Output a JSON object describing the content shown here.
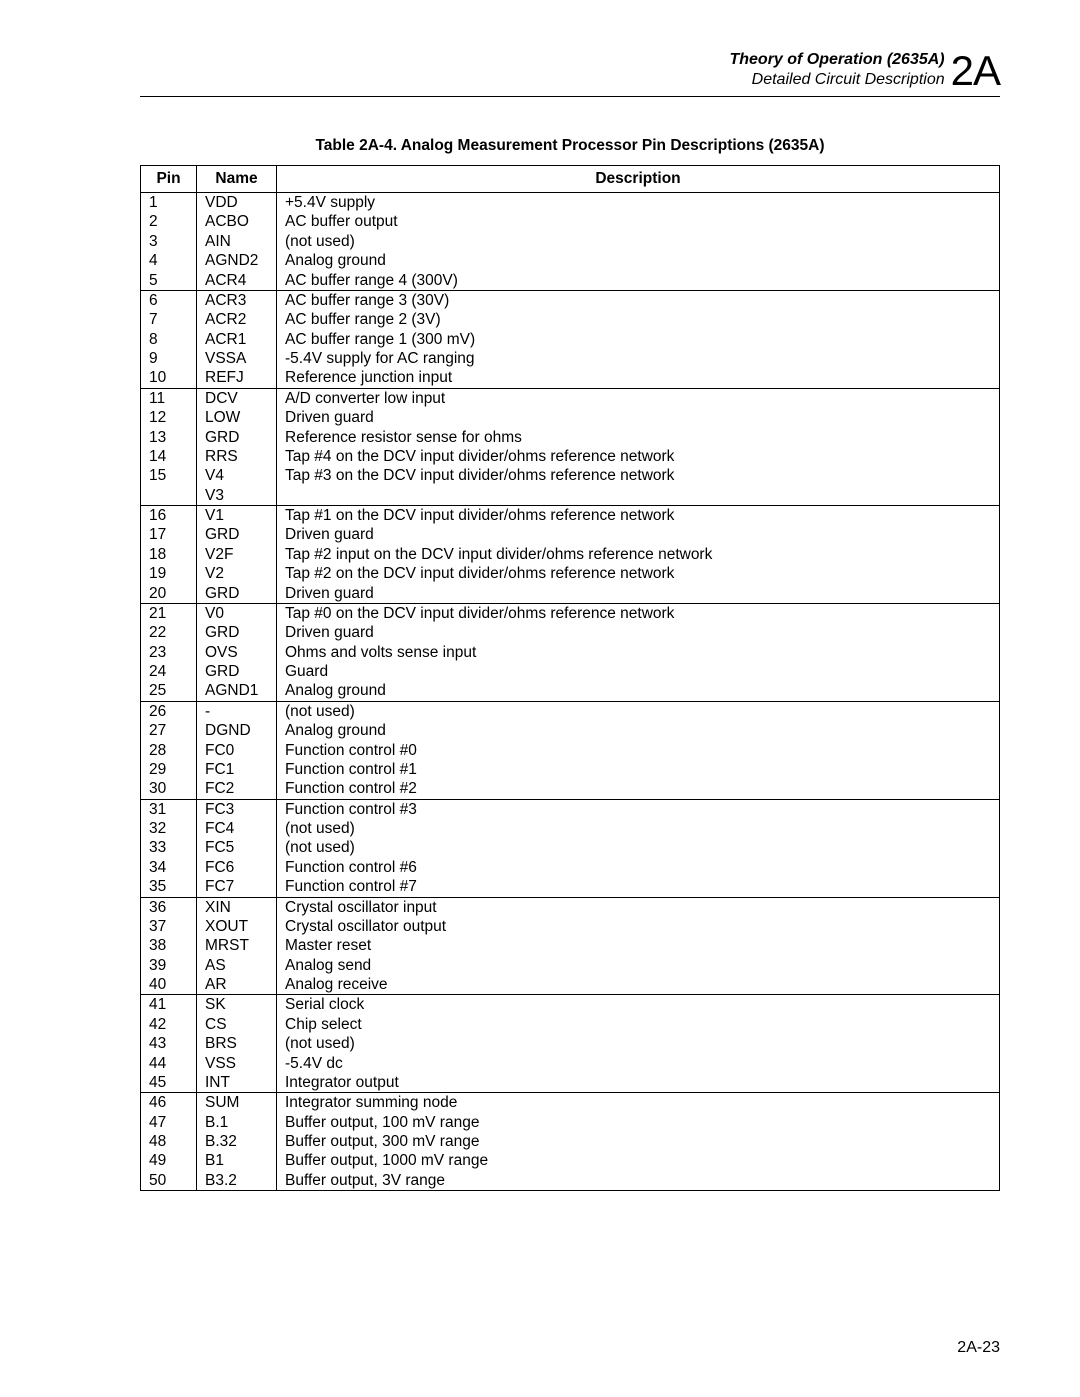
{
  "header": {
    "line1": "Theory of Operation (2635A)",
    "line2": "Detailed Circuit Description",
    "chapter": "2A"
  },
  "table": {
    "caption": "Table 2A-4. Analog Measurement Processor Pin Descriptions (2635A)",
    "columns": {
      "pin": "Pin",
      "name": "Name",
      "desc": "Description"
    },
    "groups": [
      {
        "rows": [
          {
            "pin": "1",
            "name": "VDD",
            "desc": "+5.4V supply"
          },
          {
            "pin": "2",
            "name": "ACBO",
            "desc": "AC buffer output"
          },
          {
            "pin": "3",
            "name": "AIN",
            "desc": "(not used)"
          },
          {
            "pin": "4",
            "name": "AGND2",
            "desc": "Analog ground"
          },
          {
            "pin": "5",
            "name": "ACR4",
            "desc": "AC buffer range 4 (300V)"
          }
        ]
      },
      {
        "rows": [
          {
            "pin": "6",
            "name": "ACR3",
            "desc": "AC buffer range 3 (30V)"
          },
          {
            "pin": "7",
            "name": "ACR2",
            "desc": "AC buffer range 2 (3V)"
          },
          {
            "pin": "8",
            "name": "ACR1",
            "desc": "AC buffer range 1 (300 mV)"
          },
          {
            "pin": "9",
            "name": "VSSA",
            "desc": "-5.4V supply for AC ranging"
          },
          {
            "pin": "10",
            "name": "REFJ",
            "desc": "Reference junction input"
          }
        ]
      },
      {
        "rows": [
          {
            "pin": "11",
            "name": "DCV",
            "desc": "A/D converter low input"
          },
          {
            "pin": "12",
            "name": "LOW",
            "desc": "Driven guard"
          },
          {
            "pin": "13",
            "name": "GRD",
            "desc": "Reference resistor sense for ohms"
          },
          {
            "pin": "14",
            "name": "RRS",
            "desc": "Tap #4 on the DCV input divider/ohms reference network"
          },
          {
            "pin": "15",
            "name": "V4",
            "desc": "Tap #3 on the DCV input divider/ohms reference network"
          },
          {
            "pin": "",
            "name": "V3",
            "desc": ""
          }
        ]
      },
      {
        "rows": [
          {
            "pin": "16",
            "name": "V1",
            "desc": "Tap #1 on the DCV input divider/ohms reference network"
          },
          {
            "pin": "17",
            "name": "GRD",
            "desc": "Driven guard"
          },
          {
            "pin": "18",
            "name": "V2F",
            "desc": "Tap #2 input on the DCV input divider/ohms reference network"
          },
          {
            "pin": "19",
            "name": "V2",
            "desc": "Tap #2 on the DCV input divider/ohms reference network"
          },
          {
            "pin": "20",
            "name": "GRD",
            "desc": "Driven guard"
          }
        ]
      },
      {
        "rows": [
          {
            "pin": "21",
            "name": "V0",
            "desc": "Tap #0 on the DCV input divider/ohms reference network"
          },
          {
            "pin": "22",
            "name": "GRD",
            "desc": "Driven guard"
          },
          {
            "pin": "23",
            "name": "OVS",
            "desc": "Ohms and volts sense input"
          },
          {
            "pin": "24",
            "name": "GRD",
            "desc": "Guard"
          },
          {
            "pin": "25",
            "name": "AGND1",
            "desc": "Analog ground"
          }
        ]
      },
      {
        "rows": [
          {
            "pin": "26",
            "name": "-",
            "desc": "(not used)"
          },
          {
            "pin": "27",
            "name": "DGND",
            "desc": "Analog ground"
          },
          {
            "pin": "28",
            "name": "FC0",
            "desc": "Function control #0"
          },
          {
            "pin": "29",
            "name": "FC1",
            "desc": "Function control #1"
          },
          {
            "pin": "30",
            "name": "FC2",
            "desc": "Function control #2"
          }
        ]
      },
      {
        "rows": [
          {
            "pin": "31",
            "name": "FC3",
            "desc": "Function control #3"
          },
          {
            "pin": "32",
            "name": "FC4",
            "desc": "(not used)"
          },
          {
            "pin": "33",
            "name": "FC5",
            "desc": "(not used)"
          },
          {
            "pin": "34",
            "name": "FC6",
            "desc": "Function control #6"
          },
          {
            "pin": "35",
            "name": "FC7",
            "desc": "Function control #7"
          }
        ]
      },
      {
        "rows": [
          {
            "pin": "36",
            "name": "XIN",
            "desc": "Crystal oscillator input"
          },
          {
            "pin": "37",
            "name": "XOUT",
            "desc": "Crystal oscillator output"
          },
          {
            "pin": "38",
            "name": "MRST",
            "desc": "Master reset"
          },
          {
            "pin": "39",
            "name": "AS",
            "desc": "Analog send"
          },
          {
            "pin": "40",
            "name": "AR",
            "desc": "Analog receive"
          }
        ]
      },
      {
        "rows": [
          {
            "pin": "41",
            "name": "SK",
            "desc": "Serial clock"
          },
          {
            "pin": "42",
            "name": "CS",
            "desc": "Chip select"
          },
          {
            "pin": "43",
            "name": "BRS",
            "desc": "(not used)"
          },
          {
            "pin": "44",
            "name": "VSS",
            "desc": "-5.4V dc"
          },
          {
            "pin": "45",
            "name": "INT",
            "desc": "Integrator output"
          }
        ]
      },
      {
        "rows": [
          {
            "pin": "46",
            "name": "SUM",
            "desc": "Integrator summing node"
          },
          {
            "pin": "47",
            "name": "B.1",
            "desc": "Buffer output, 100 mV range"
          },
          {
            "pin": "48",
            "name": "B.32",
            "desc": "Buffer output, 300 mV range"
          },
          {
            "pin": "49",
            "name": "B1",
            "desc": "Buffer output, 1000 mV range"
          },
          {
            "pin": "50",
            "name": "B3.2",
            "desc": "Buffer output, 3V range"
          }
        ]
      }
    ]
  },
  "page_number": "2A-23"
}
